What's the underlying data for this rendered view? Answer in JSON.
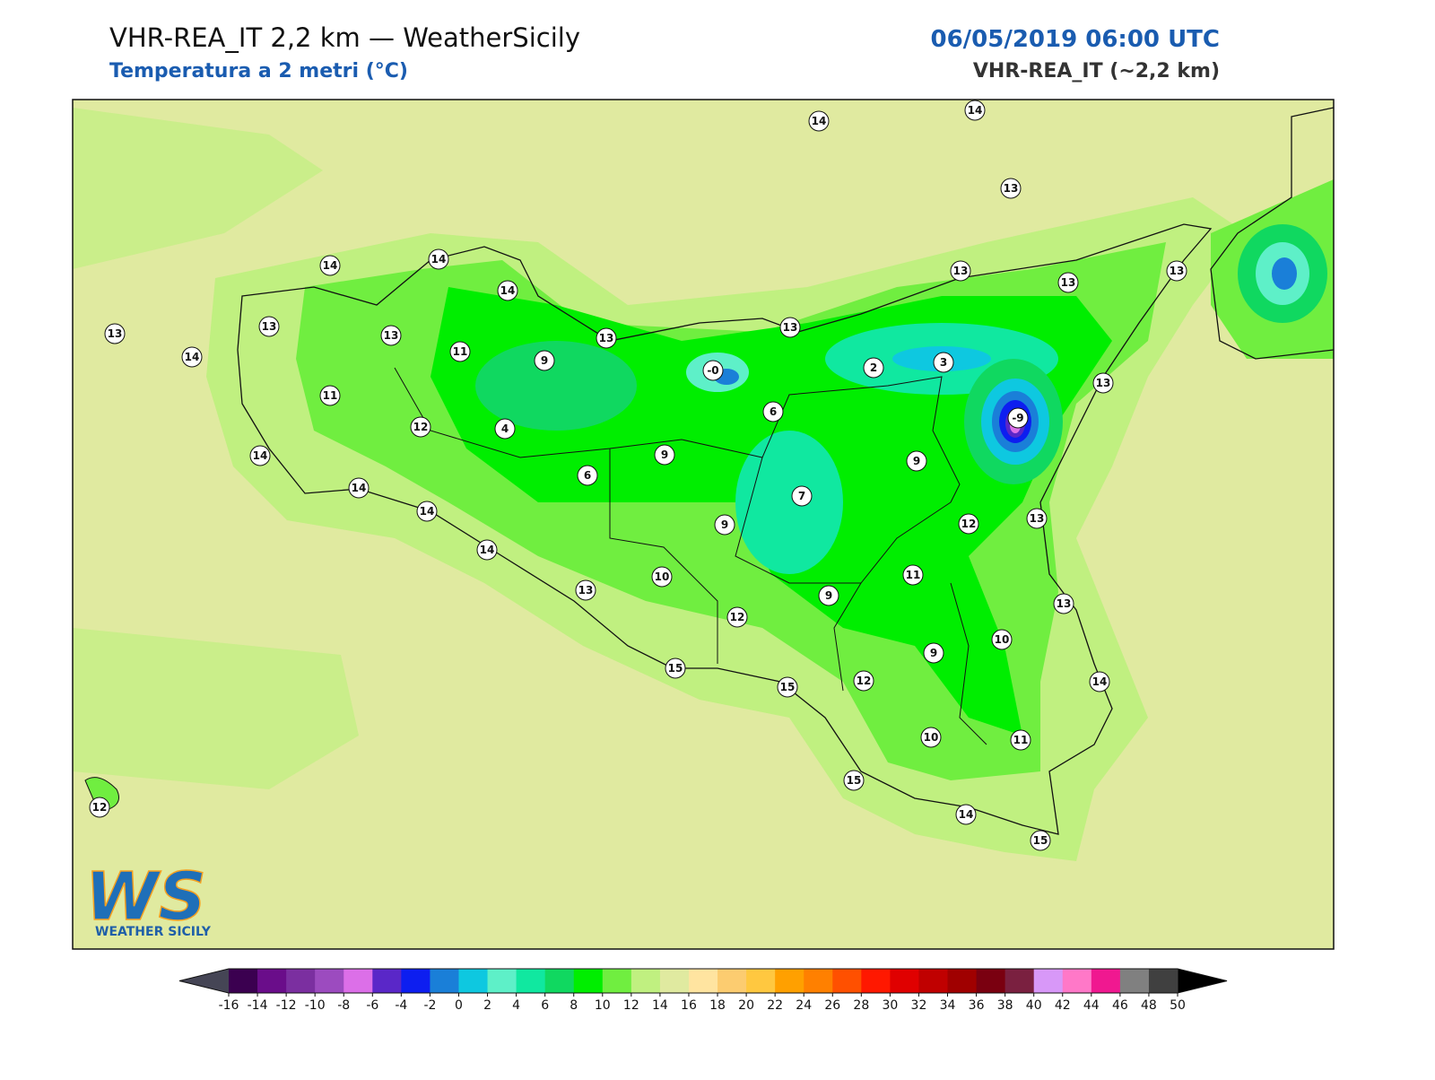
{
  "header": {
    "title": "VHR-REA_IT 2,2 km — WeatherSicily",
    "subtitle": "Temperatura a 2 metri (°C)",
    "datetime": "06/05/2019 06:00 UTC",
    "model": "VHR-REA_IT (~2,2 km)"
  },
  "stations": [
    {
      "value": 14
    },
    {
      "value": 14
    },
    {
      "value": 13
    },
    {
      "value": 14
    },
    {
      "value": 14
    },
    {
      "value": 14
    },
    {
      "value": 13
    },
    {
      "value": 13
    },
    {
      "value": 14
    },
    {
      "value": 13
    },
    {
      "value": 11
    },
    {
      "value": 9
    },
    {
      "value": 13
    },
    {
      "value": 13
    },
    {
      "value": 13
    },
    {
      "value": 13
    },
    {
      "value": 13
    },
    {
      "value": 0,
      "label": "-0"
    },
    {
      "value": 2
    },
    {
      "value": 3
    },
    {
      "value": 13
    },
    {
      "value": 11
    },
    {
      "value": 6
    },
    {
      "value": -9
    },
    {
      "value": 12
    },
    {
      "value": 4
    },
    {
      "value": 14
    },
    {
      "value": 9
    },
    {
      "value": 9
    },
    {
      "value": 6
    },
    {
      "value": 14
    },
    {
      "value": 7
    },
    {
      "value": 14
    },
    {
      "value": 9
    },
    {
      "value": 12
    },
    {
      "value": 13
    },
    {
      "value": 14
    },
    {
      "value": 11
    },
    {
      "value": 10
    },
    {
      "value": 13
    },
    {
      "value": 9
    },
    {
      "value": 13
    },
    {
      "value": 12
    },
    {
      "value": 10
    },
    {
      "value": 9
    },
    {
      "value": 15
    },
    {
      "value": 12
    },
    {
      "value": 15
    },
    {
      "value": 14
    },
    {
      "value": 10
    },
    {
      "value": 11
    },
    {
      "value": 15
    },
    {
      "value": 12
    },
    {
      "value": 14
    },
    {
      "value": 15
    }
  ],
  "colorbar": {
    "ticks": [
      -16,
      -14,
      -12,
      -10,
      -8,
      -6,
      -4,
      -2,
      0,
      2,
      4,
      6,
      8,
      10,
      12,
      14,
      16,
      18,
      20,
      22,
      24,
      26,
      28,
      30,
      32,
      34,
      36,
      38,
      40,
      42,
      44,
      46,
      48,
      50
    ],
    "colors": [
      "#3b0050",
      "#6a0d8a",
      "#7b2fa0",
      "#9c4bbf",
      "#dc6fe8",
      "#5a27c8",
      "#0d1ef0",
      "#1a7fd8",
      "#0ec8e0",
      "#5ef0c8",
      "#10e8a0",
      "#10d860",
      "#00ee00",
      "#70ee40",
      "#c0f080",
      "#e0eaa0",
      "#ffe4a0",
      "#fccc70",
      "#ffc840",
      "#ffa000",
      "#ff8000",
      "#ff5000",
      "#ff1800",
      "#e00000",
      "#c00000",
      "#a00000",
      "#7a0010",
      "#7a2040",
      "#d898f8",
      "#ff78c8",
      "#f01890",
      "#808080",
      "#404040"
    ],
    "under_color": "#454555",
    "over_color": "#000000"
  },
  "logo": {
    "mark": "WS",
    "text": "WEATHER SICILY"
  }
}
